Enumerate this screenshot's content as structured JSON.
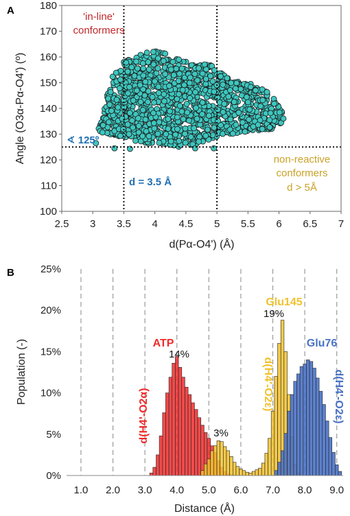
{
  "chart_data": [
    {
      "panel_label": "A",
      "type": "scatter",
      "xlabel": "d(Pα-O4') (Å)",
      "ylabel": "Angle (O3α-Pα-O4') (º)",
      "xlim": [
        2.5,
        7.0
      ],
      "ylim": [
        100,
        180
      ],
      "xticks": [
        "2.5",
        "3",
        "3.5",
        "4",
        "4.5",
        "5",
        "5.5",
        "6",
        "6.5",
        "7"
      ],
      "yticks": [
        "100",
        "110",
        "120",
        "130",
        "140",
        "150",
        "160",
        "170",
        "180"
      ],
      "grid": false,
      "marker_color": "#3ec6be",
      "marker_edge": "#1a1a1a",
      "cloud": {
        "description_points": [
          [
            3.0,
            138
          ],
          [
            3.1,
            132
          ],
          [
            3.3,
            152
          ],
          [
            3.5,
            158
          ],
          [
            3.7,
            161
          ],
          [
            3.9,
            163
          ],
          [
            4.1,
            162
          ],
          [
            4.3,
            160
          ],
          [
            4.6,
            158
          ],
          [
            4.9,
            157
          ],
          [
            5.2,
            152
          ],
          [
            5.5,
            150
          ],
          [
            5.8,
            147
          ],
          [
            6.0,
            142
          ],
          [
            6.1,
            135
          ],
          [
            5.9,
            132
          ],
          [
            5.6,
            131
          ],
          [
            5.3,
            130
          ],
          [
            5.0,
            129
          ],
          [
            4.7,
            126
          ],
          [
            4.4,
            125
          ],
          [
            4.0,
            126
          ],
          [
            3.7,
            127
          ],
          [
            3.4,
            129
          ],
          [
            3.1,
            131
          ]
        ],
        "outliers": [
          [
            3.35,
            124.5
          ],
          [
            3.6,
            124.3
          ],
          [
            4.65,
            124.5
          ],
          [
            4.95,
            124.5
          ],
          [
            3.05,
            126.5
          ]
        ]
      },
      "reference_lines": [
        {
          "orientation": "vertical",
          "x": 3.5
        },
        {
          "orientation": "vertical",
          "x": 5.0
        },
        {
          "orientation": "horizontal",
          "y": 125
        }
      ],
      "annotations": [
        {
          "text": "'in-line'",
          "color": "#c0282a"
        },
        {
          "text": "conformers",
          "color": "#c0282a"
        },
        {
          "text": "∢ 125º",
          "color": "#1f6fb4"
        },
        {
          "text": "d = 3.5 Å",
          "color": "#1f6fb4"
        },
        {
          "text": "non-reactive",
          "color": "#c9a227"
        },
        {
          "text": "conformers",
          "color": "#c9a227"
        },
        {
          "text": "d > 5Å",
          "color": "#c9a227"
        }
      ]
    },
    {
      "panel_label": "B",
      "type": "bar",
      "xlabel": "Distance (Å)",
      "ylabel": "Population (-)",
      "xlim": [
        1.0,
        9.0
      ],
      "ylim": [
        0,
        25
      ],
      "xticks": [
        "1.0",
        "2.0",
        "3.0",
        "4.0",
        "5.0",
        "6.0",
        "7.0",
        "8.0",
        "9.0"
      ],
      "yticks": [
        "0%",
        "5%",
        "10%",
        "15%",
        "20%",
        "25%"
      ],
      "grid": "vertical dashed",
      "bin_width": 0.1,
      "series": [
        {
          "name": "ATP",
          "label": "d(H4'-O2α)",
          "color": "#ee2b2b",
          "peak_label": "14%",
          "x": [
            3.2,
            3.3,
            3.4,
            3.5,
            3.6,
            3.7,
            3.8,
            3.9,
            4.0,
            4.1,
            4.2,
            4.3,
            4.4,
            4.5,
            4.6,
            4.7,
            4.8,
            4.9,
            5.0,
            5.1,
            5.2,
            5.3,
            5.4,
            5.5,
            5.6,
            5.7,
            5.8
          ],
          "values": [
            0.3,
            1.0,
            2.5,
            4.8,
            7.6,
            10.0,
            11.9,
            13.6,
            14.4,
            13.1,
            11.9,
            10.7,
            9.8,
            8.8,
            8.0,
            7.0,
            6.1,
            5.2,
            4.5,
            3.6,
            2.8,
            1.8,
            1.0,
            0.5,
            0.2,
            0.1,
            0.05
          ]
        },
        {
          "name": "Glu145",
          "label": "d(H4'-O2ε)",
          "color": "#f2c12e",
          "peak_label": "19%",
          "second_label": "3%",
          "x": [
            4.8,
            4.9,
            5.0,
            5.1,
            5.2,
            5.3,
            5.4,
            5.5,
            5.6,
            5.7,
            5.8,
            5.9,
            6.0,
            6.1,
            6.2,
            6.3,
            6.4,
            6.5,
            6.6,
            6.7,
            6.8,
            6.9,
            7.0,
            7.1,
            7.2,
            7.3,
            7.4,
            7.5,
            7.6,
            7.7,
            7.8
          ],
          "values": [
            0.6,
            1.4,
            2.0,
            3.0,
            3.6,
            4.2,
            4.1,
            3.5,
            3.0,
            2.3,
            1.6,
            1.1,
            0.8,
            0.6,
            0.4,
            0.3,
            0.5,
            0.7,
            0.9,
            1.5,
            2.7,
            4.5,
            7.8,
            12.0,
            16.0,
            18.8,
            15.0,
            9.8,
            4.7,
            1.3,
            0.3
          ]
        },
        {
          "name": "Glu76",
          "label": "d(H4'-O2ε)",
          "color": "#4a72c6",
          "x": [
            7.1,
            7.2,
            7.3,
            7.4,
            7.5,
            7.6,
            7.7,
            7.8,
            7.9,
            8.0,
            8.1,
            8.2,
            8.3,
            8.4,
            8.5,
            8.6,
            8.7,
            8.8,
            8.9,
            9.0,
            9.1
          ],
          "values": [
            0.6,
            1.6,
            3.0,
            5.1,
            7.8,
            9.8,
            11.4,
            12.3,
            13.2,
            13.5,
            14.0,
            13.8,
            13.0,
            11.8,
            10.2,
            8.6,
            6.6,
            4.6,
            2.8,
            1.3,
            0.5
          ]
        }
      ]
    }
  ]
}
